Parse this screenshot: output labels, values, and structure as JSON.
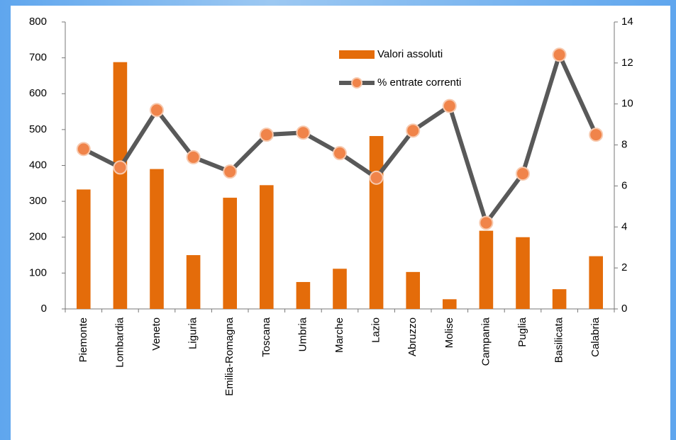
{
  "chart_data": {
    "type": "bar_line",
    "categories": [
      "Piemonte",
      "Lombardia",
      "Veneto",
      "Liguria",
      "Emilia-Romagna",
      "Toscana",
      "Umbria",
      "Marche",
      "Lazio",
      "Abruzzo",
      "Molise",
      "Campania",
      "Puglia",
      "Basilicata",
      "Calabria"
    ],
    "series": [
      {
        "name": "Valori assoluti",
        "type": "bar",
        "color": "#e46c0a",
        "values": [
          333,
          688,
          390,
          150,
          310,
          345,
          75,
          112,
          482,
          103,
          27,
          218,
          200,
          55,
          147
        ]
      },
      {
        "name": "% entrate correnti",
        "type": "line",
        "axis": "y2",
        "color": "#595959",
        "marker_color": "#f0844a",
        "values": [
          7.8,
          6.9,
          9.7,
          7.4,
          6.7,
          8.5,
          8.6,
          7.6,
          6.4,
          8.7,
          9.9,
          4.2,
          6.6,
          12.4,
          8.5
        ]
      }
    ],
    "ylim": [
      0,
      800
    ],
    "yticks": [
      0,
      100,
      200,
      300,
      400,
      500,
      600,
      700,
      800
    ],
    "y2lim": [
      0,
      14
    ],
    "y2ticks": [
      0,
      2,
      4,
      6,
      8,
      10,
      12,
      14
    ],
    "grid": false
  }
}
